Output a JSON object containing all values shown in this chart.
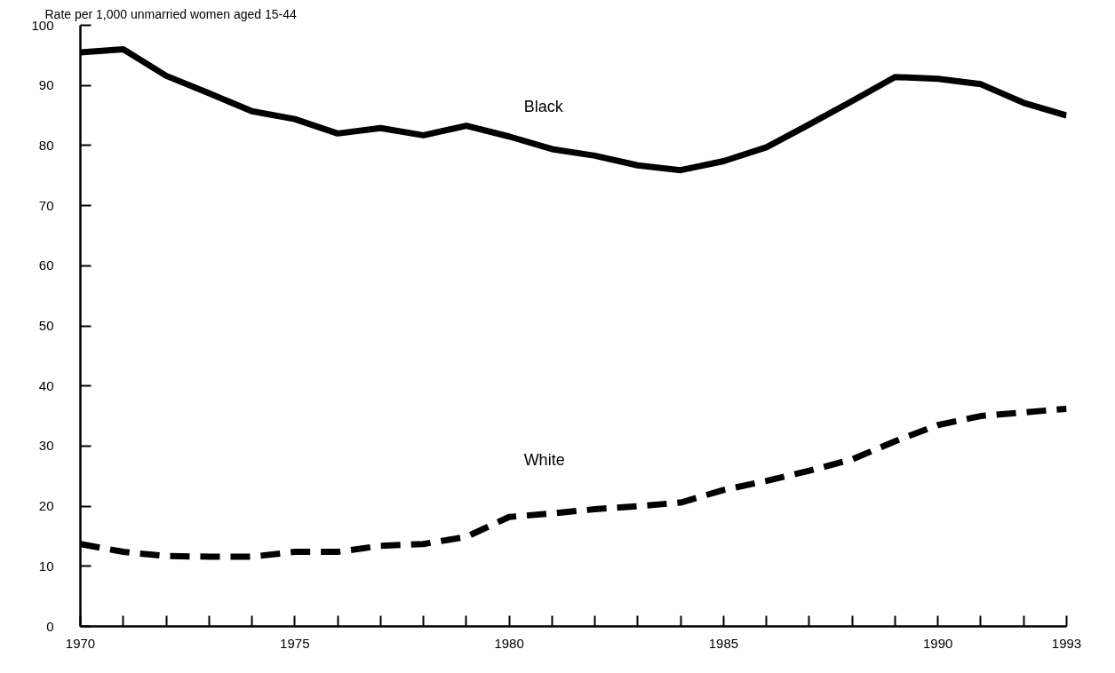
{
  "chart_data": {
    "type": "line",
    "ylabel": "Rate per 1,000 unmarried women aged 15-44",
    "x": [
      1970,
      1971,
      1972,
      1973,
      1974,
      1975,
      1976,
      1977,
      1978,
      1979,
      1980,
      1981,
      1982,
      1983,
      1984,
      1985,
      1986,
      1987,
      1988,
      1989,
      1990,
      1991,
      1992,
      1993
    ],
    "series": [
      {
        "name": "Black",
        "color": "#000000",
        "line_style": "solid",
        "values": [
          95.5,
          96,
          91.6,
          88.7,
          85.7,
          84.4,
          82,
          82.9,
          81.7,
          83.3,
          81.5,
          79.4,
          78.3,
          76.7,
          75.9,
          77.4,
          79.7,
          83.5,
          87.4,
          91.4,
          91.1,
          90.2,
          87.1,
          85.0
        ]
      },
      {
        "name": "White",
        "color": "#000000",
        "line_style": "dashed",
        "values": [
          13.7,
          12.4,
          11.7,
          11.6,
          11.6,
          12.4,
          12.4,
          13.4,
          13.7,
          14.9,
          18.2,
          18.8,
          19.5,
          20.0,
          20.6,
          22.7,
          24.2,
          25.9,
          27.8,
          30.8,
          33.5,
          35.0,
          35.6,
          36.2
        ]
      }
    ],
    "xlim": [
      1970,
      1993
    ],
    "ylim": [
      0,
      100
    ],
    "xticks": [
      1970,
      {
        "value": 1971,
        "label": null
      },
      {
        "value": 1972,
        "label": null
      },
      {
        "value": 1973,
        "label": null
      },
      {
        "value": 1974,
        "label": null
      },
      1975,
      {
        "value": 1976,
        "label": null
      },
      {
        "value": 1977,
        "label": null
      },
      {
        "value": 1978,
        "label": null
      },
      {
        "value": 1979,
        "label": null
      },
      1980,
      {
        "value": 1981,
        "label": null
      },
      {
        "value": 1982,
        "label": null
      },
      {
        "value": 1983,
        "label": null
      },
      {
        "value": 1984,
        "label": null
      },
      1985,
      {
        "value": 1986,
        "label": null
      },
      {
        "value": 1987,
        "label": null
      },
      {
        "value": 1988,
        "label": null
      },
      {
        "value": 1989,
        "label": null
      },
      1990,
      {
        "value": 1991,
        "label": null
      },
      {
        "value": 1992,
        "label": null
      },
      1993
    ],
    "yticks": [
      0,
      10,
      20,
      30,
      40,
      50,
      60,
      70,
      80,
      90,
      100
    ],
    "grid": false,
    "marker": "none"
  }
}
